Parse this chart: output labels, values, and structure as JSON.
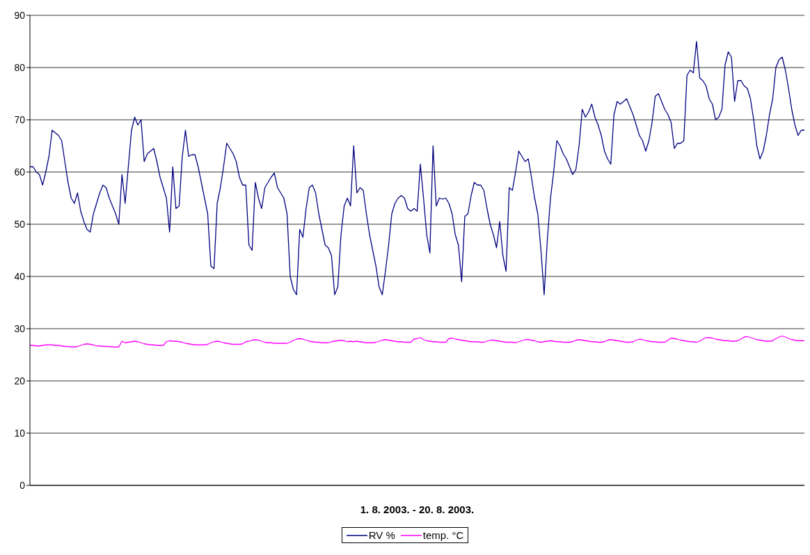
{
  "chart_data": {
    "type": "line",
    "xlabel": "1. 8. 2003. - 20. 8. 2003.",
    "categories": [
      null,
      null,
      null,
      null,
      null,
      null,
      null,
      null,
      null,
      null,
      null,
      null,
      null,
      null,
      null,
      null,
      null,
      null,
      null,
      null,
      null,
      null,
      null,
      null,
      null,
      null,
      null,
      null,
      null,
      null,
      null,
      null,
      null,
      null,
      null,
      null,
      null,
      null,
      null,
      null,
      null,
      null,
      null,
      null,
      null,
      null,
      null,
      null,
      null,
      null,
      null,
      null,
      null,
      null,
      null,
      null,
      null,
      null,
      null,
      null,
      null,
      null,
      null,
      null,
      null,
      null,
      null,
      null,
      null,
      null,
      null,
      null,
      null,
      null,
      null,
      null,
      null,
      null,
      null,
      null,
      null,
      null,
      null,
      null,
      null,
      null,
      null,
      null,
      null,
      null,
      null,
      null,
      null,
      null,
      null,
      null,
      null,
      null,
      null,
      null,
      null,
      null,
      null,
      null,
      null,
      null,
      null,
      null,
      null,
      null,
      null,
      null,
      null,
      null,
      null,
      null,
      null,
      null,
      null,
      null,
      null,
      null,
      null,
      null,
      null,
      null,
      null,
      null,
      null,
      null,
      null,
      null,
      null,
      null,
      null,
      null,
      null,
      null,
      null,
      null,
      null,
      null,
      null,
      null,
      null,
      null,
      null,
      null,
      null,
      null,
      null,
      null,
      null,
      null,
      null,
      null,
      null,
      null,
      null,
      null,
      null,
      null,
      null,
      null,
      null,
      null,
      null,
      null,
      null,
      null,
      null,
      null,
      null,
      null,
      null,
      null,
      null,
      null,
      null,
      null,
      null,
      null,
      null,
      null,
      null,
      null,
      null,
      null,
      null,
      null,
      null,
      null,
      null,
      null,
      null,
      null,
      null,
      null,
      null,
      null,
      null,
      null,
      null,
      null,
      null,
      null,
      null,
      null,
      null,
      null,
      null,
      null,
      null,
      null,
      null,
      null,
      null,
      null,
      null,
      null,
      null,
      null,
      null,
      null,
      null,
      null,
      null,
      null,
      null,
      null,
      null,
      null,
      null,
      null,
      null,
      null,
      null,
      null,
      null,
      null,
      null,
      null,
      null,
      null,
      null
    ],
    "series": [
      {
        "name": "RV %",
        "color": "#000080",
        "values": [
          61,
          61,
          60,
          59.5,
          57.5,
          60,
          63,
          68,
          67.5,
          67,
          66,
          62,
          58,
          55,
          54,
          56,
          52.5,
          50.5,
          49,
          48.5,
          52,
          54,
          56,
          57.5,
          57,
          55,
          53.5,
          52,
          50,
          59.5,
          54,
          61,
          68,
          70.5,
          69,
          70,
          62,
          63.5,
          64,
          64.5,
          62,
          59,
          57,
          55,
          48.5,
          61,
          53,
          53.5,
          63,
          68,
          63,
          63.3,
          63.3,
          61,
          58,
          55,
          52,
          42,
          41.5,
          54,
          57,
          61,
          65.5,
          64.5,
          63.5,
          62,
          59,
          57.5,
          57.5,
          46,
          45,
          58,
          55,
          53,
          57,
          58,
          59,
          59.8,
          57,
          56,
          55,
          52,
          40,
          37.5,
          36.5,
          49,
          47.5,
          53,
          57,
          57.5,
          56,
          52,
          49,
          46,
          45.5,
          44,
          36.5,
          38,
          48,
          53.5,
          55,
          53.5,
          65,
          56,
          57,
          56.5,
          52,
          48,
          45,
          42,
          38,
          36.5,
          41,
          46,
          52,
          54,
          55,
          55.5,
          55,
          53,
          52.5,
          53,
          52.5,
          61.5,
          55,
          48,
          44.5,
          65,
          53.5,
          55,
          54.8,
          55,
          54,
          52,
          48,
          46,
          39,
          51.5,
          52,
          55.5,
          58,
          57.5,
          57.5,
          56.5,
          53,
          50,
          48,
          45.5,
          50.5,
          44,
          41,
          57,
          56.5,
          60,
          64,
          63,
          62,
          62.5,
          59,
          55,
          52,
          45,
          36.5,
          47,
          55,
          60,
          66,
          65,
          63.5,
          62.5,
          61,
          59.5,
          60.5,
          65,
          72,
          70.5,
          71.5,
          73,
          70.5,
          69,
          67,
          64,
          62.5,
          61.5,
          71,
          73.5,
          73,
          73.5,
          74,
          72.5,
          71,
          69,
          67,
          66,
          64,
          66,
          69.5,
          74.5,
          75,
          73.5,
          72,
          71,
          69.5,
          64.5,
          65.5,
          65.5,
          66,
          78.5,
          79.5,
          79,
          85,
          78,
          77.5,
          76.5,
          74,
          73,
          70,
          70.5,
          72,
          80.5,
          83,
          82,
          73.5,
          77.5,
          77.5,
          76.5,
          76,
          74,
          70,
          65,
          62.5,
          64,
          67,
          71,
          74,
          80,
          81.5,
          82,
          79.5,
          76,
          72,
          69,
          67,
          68,
          68
        ]
      },
      {
        "name": "temp. °C",
        "color": "#ff00ff",
        "values": [
          26.8,
          26.8,
          26.7,
          26.7,
          26.8,
          26.9,
          26.9,
          26.9,
          26.8,
          26.8,
          26.7,
          26.6,
          26.6,
          26.5,
          26.5,
          26.6,
          26.8,
          27,
          27.1,
          27,
          26.9,
          26.7,
          26.7,
          26.6,
          26.6,
          26.6,
          26.5,
          26.5,
          26.5,
          27.6,
          27.3,
          27.4,
          27.5,
          27.6,
          27.5,
          27.3,
          27.1,
          27,
          26.9,
          26.9,
          26.8,
          26.8,
          26.8,
          27.5,
          27.7,
          27.6,
          27.6,
          27.5,
          27.4,
          27.2,
          27.1,
          27,
          26.9,
          26.9,
          26.9,
          26.9,
          27,
          27.3,
          27.5,
          27.6,
          27.5,
          27.3,
          27.2,
          27.1,
          27,
          27,
          27,
          27.1,
          27.5,
          27.6,
          27.8,
          27.9,
          27.8,
          27.6,
          27.4,
          27.3,
          27.3,
          27.2,
          27.2,
          27.2,
          27.2,
          27.2,
          27.4,
          27.8,
          28,
          28.1,
          28,
          27.8,
          27.6,
          27.5,
          27.4,
          27.4,
          27.3,
          27.3,
          27.3,
          27.5,
          27.6,
          27.7,
          27.8,
          27.7,
          27.5,
          27.6,
          27.5,
          27.6,
          27.5,
          27.4,
          27.3,
          27.3,
          27.3,
          27.4,
          27.6,
          27.8,
          27.9,
          27.8,
          27.7,
          27.6,
          27.5,
          27.5,
          27.4,
          27.4,
          27.4,
          28,
          28.1,
          28.3,
          27.9,
          27.7,
          27.6,
          27.5,
          27.5,
          27.4,
          27.4,
          27.4,
          28.1,
          28.2,
          28,
          27.9,
          27.8,
          27.7,
          27.6,
          27.5,
          27.5,
          27.5,
          27.4,
          27.4,
          27.6,
          27.8,
          27.8,
          27.7,
          27.6,
          27.5,
          27.4,
          27.4,
          27.4,
          27.3,
          27.5,
          27.7,
          27.9,
          27.9,
          27.8,
          27.7,
          27.5,
          27.4,
          27.5,
          27.6,
          27.7,
          27.6,
          27.5,
          27.5,
          27.4,
          27.4,
          27.4,
          27.5,
          27.8,
          27.9,
          27.8,
          27.7,
          27.6,
          27.5,
          27.5,
          27.4,
          27.4,
          27.5,
          27.8,
          27.9,
          27.8,
          27.7,
          27.6,
          27.5,
          27.4,
          27.4,
          27.5,
          27.8,
          28,
          27.9,
          27.7,
          27.6,
          27.5,
          27.5,
          27.4,
          27.4,
          27.4,
          27.8,
          28.2,
          28.1,
          28,
          27.8,
          27.7,
          27.6,
          27.5,
          27.5,
          27.4,
          27.6,
          28,
          28.3,
          28.3,
          28.2,
          28,
          27.9,
          27.8,
          27.7,
          27.7,
          27.6,
          27.6,
          27.7,
          28,
          28.4,
          28.5,
          28.3,
          28.1,
          27.9,
          27.8,
          27.7,
          27.6,
          27.6,
          27.7,
          28.1,
          28.4,
          28.6,
          28.4,
          28.1,
          27.9,
          27.8,
          27.7,
          27.7,
          27.7
        ]
      }
    ],
    "ylim": [
      0,
      90
    ],
    "yticks": [
      0,
      10,
      20,
      30,
      40,
      50,
      60,
      70,
      80,
      90
    ],
    "grid": "y",
    "legend": "bottom",
    "tick_labels": "y",
    "marker": "none",
    "line_style": "solid"
  }
}
